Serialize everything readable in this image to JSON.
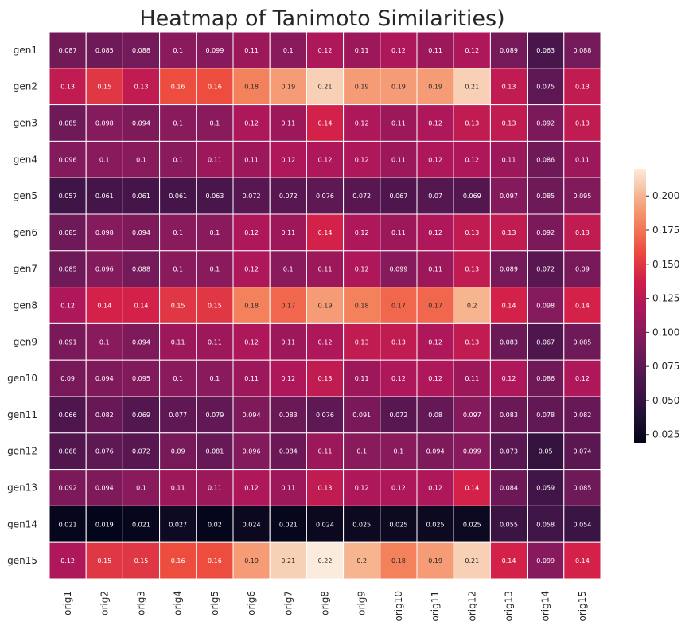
{
  "chart_data": {
    "type": "heatmap",
    "title": "Heatmap of Tanimoto Similarities)",
    "xlabel": "",
    "ylabel": "",
    "rows": [
      "gen1",
      "gen2",
      "gen3",
      "gen4",
      "gen5",
      "gen6",
      "gen7",
      "gen8",
      "gen9",
      "gen10",
      "gen11",
      "gen12",
      "gen13",
      "gen14",
      "gen15"
    ],
    "columns": [
      "orig1",
      "orig2",
      "orig3",
      "orig4",
      "orig5",
      "orig6",
      "orig7",
      "orig8",
      "orig9",
      "orig10",
      "orig11",
      "orig12",
      "orig13",
      "orig14",
      "orig15"
    ],
    "values": [
      [
        0.087,
        0.085,
        0.088,
        0.1,
        0.099,
        0.11,
        0.1,
        0.12,
        0.11,
        0.12,
        0.11,
        0.12,
        0.089,
        0.063,
        0.088
      ],
      [
        0.13,
        0.15,
        0.13,
        0.16,
        0.16,
        0.18,
        0.19,
        0.21,
        0.19,
        0.19,
        0.19,
        0.21,
        0.13,
        0.075,
        0.13
      ],
      [
        0.085,
        0.098,
        0.094,
        0.1,
        0.1,
        0.12,
        0.11,
        0.14,
        0.12,
        0.11,
        0.12,
        0.13,
        0.13,
        0.092,
        0.13
      ],
      [
        0.096,
        0.1,
        0.1,
        0.1,
        0.11,
        0.11,
        0.12,
        0.12,
        0.12,
        0.11,
        0.12,
        0.12,
        0.11,
        0.086,
        0.11
      ],
      [
        0.057,
        0.061,
        0.061,
        0.061,
        0.063,
        0.072,
        0.072,
        0.076,
        0.072,
        0.067,
        0.07,
        0.069,
        0.097,
        0.085,
        0.095
      ],
      [
        0.085,
        0.098,
        0.094,
        0.1,
        0.1,
        0.12,
        0.11,
        0.14,
        0.12,
        0.11,
        0.12,
        0.13,
        0.13,
        0.092,
        0.13
      ],
      [
        0.085,
        0.096,
        0.088,
        0.1,
        0.1,
        0.12,
        0.1,
        0.11,
        0.12,
        0.099,
        0.11,
        0.13,
        0.089,
        0.072,
        0.09
      ],
      [
        0.12,
        0.14,
        0.14,
        0.15,
        0.15,
        0.18,
        0.17,
        0.19,
        0.18,
        0.17,
        0.17,
        0.2,
        0.14,
        0.098,
        0.14
      ],
      [
        0.091,
        0.1,
        0.094,
        0.11,
        0.11,
        0.12,
        0.11,
        0.12,
        0.13,
        0.13,
        0.12,
        0.13,
        0.083,
        0.067,
        0.085
      ],
      [
        0.09,
        0.094,
        0.095,
        0.1,
        0.1,
        0.11,
        0.12,
        0.13,
        0.11,
        0.12,
        0.12,
        0.11,
        0.12,
        0.086,
        0.12
      ],
      [
        0.066,
        0.082,
        0.069,
        0.077,
        0.079,
        0.094,
        0.083,
        0.076,
        0.091,
        0.072,
        0.08,
        0.097,
        0.083,
        0.078,
        0.082
      ],
      [
        0.068,
        0.076,
        0.072,
        0.09,
        0.081,
        0.096,
        0.084,
        0.11,
        0.1,
        0.1,
        0.094,
        0.099,
        0.073,
        0.05,
        0.074
      ],
      [
        0.092,
        0.094,
        0.1,
        0.11,
        0.11,
        0.12,
        0.11,
        0.13,
        0.12,
        0.12,
        0.12,
        0.14,
        0.084,
        0.059,
        0.085
      ],
      [
        0.021,
        0.019,
        0.021,
        0.027,
        0.02,
        0.024,
        0.021,
        0.024,
        0.025,
        0.025,
        0.025,
        0.025,
        0.055,
        0.058,
        0.054
      ],
      [
        0.12,
        0.15,
        0.15,
        0.16,
        0.16,
        0.19,
        0.21,
        0.22,
        0.2,
        0.18,
        0.19,
        0.21,
        0.14,
        0.099,
        0.14
      ]
    ],
    "value_range": [
      0.019,
      0.22
    ],
    "colormap": "rocket",
    "colorbar": {
      "ticks": [
        0.025,
        0.05,
        0.075,
        0.1,
        0.125,
        0.15,
        0.175,
        0.2
      ],
      "tick_labels": [
        "0.025",
        "0.050",
        "0.075",
        "0.100",
        "0.125",
        "0.150",
        "0.175",
        "0.200"
      ]
    },
    "annotations": true,
    "grid": false,
    "cell_separator_color": "#ffffff",
    "annotation_light_color": "#ffffff",
    "annotation_dark_color": "#262626",
    "legend_position": "right"
  }
}
